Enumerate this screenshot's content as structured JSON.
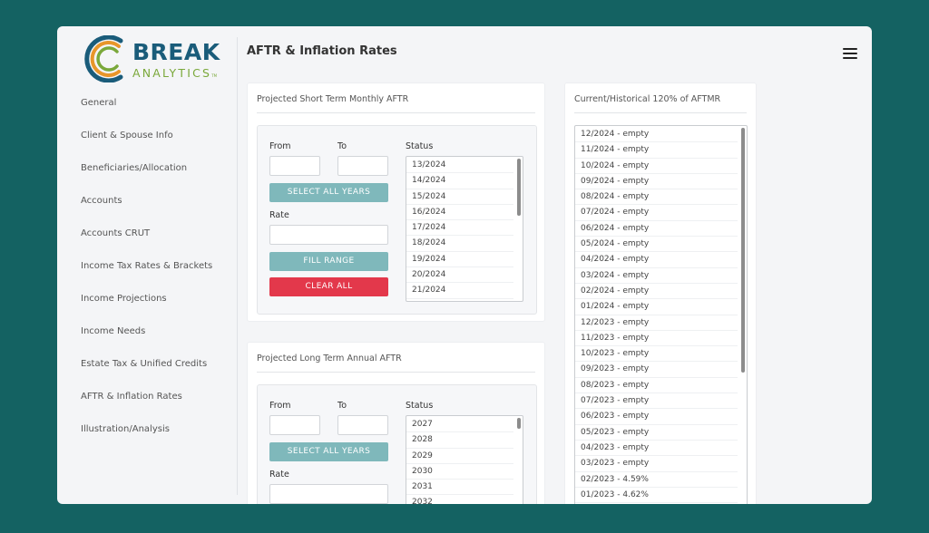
{
  "app": {
    "logo_primary": "BREAK",
    "logo_secondary": "ANALYTICS",
    "logo_tm": "TM"
  },
  "page_title": "AFTR & Inflation Rates",
  "sidebar": {
    "items": [
      {
        "label": "General"
      },
      {
        "label": "Client & Spouse Info"
      },
      {
        "label": "Beneficiaries/Allocation"
      },
      {
        "label": "Accounts"
      },
      {
        "label": "Accounts CRUT"
      },
      {
        "label": "Income Tax Rates & Brackets"
      },
      {
        "label": "Income Projections"
      },
      {
        "label": "Income Needs"
      },
      {
        "label": "Estate Tax & Unified Credits"
      },
      {
        "label": "AFTR & Inflation Rates"
      },
      {
        "label": "Illustration/Analysis"
      }
    ]
  },
  "short_term": {
    "title": "Projected Short Term Monthly AFTR",
    "from_label": "From",
    "to_label": "To",
    "status_label": "Status",
    "from_value": "",
    "to_value": "",
    "select_all_label": "SELECT ALL YEARS",
    "rate_label": "Rate",
    "rate_value": "",
    "fill_range_label": "FILL RANGE",
    "clear_all_label": "CLEAR ALL",
    "status_items": [
      "13/2024",
      "14/2024",
      "15/2024",
      "16/2024",
      "17/2024",
      "18/2024",
      "19/2024",
      "20/2024",
      "21/2024"
    ]
  },
  "long_term": {
    "title": "Projected Long Term Annual AFTR",
    "from_label": "From",
    "to_label": "To",
    "status_label": "Status",
    "from_value": "",
    "to_value": "",
    "select_all_label": "SELECT ALL YEARS",
    "rate_label": "Rate",
    "rate_value": "",
    "status_items": [
      "2027",
      "2028",
      "2029",
      "2030",
      "2031",
      "2032"
    ]
  },
  "historical": {
    "title": "Current/Historical 120% of AFTMR",
    "items": [
      "12/2024 - empty",
      "11/2024 - empty",
      "10/2024 - empty",
      "09/2024 - empty",
      "08/2024 - empty",
      "07/2024 - empty",
      "06/2024 - empty",
      "05/2024 - empty",
      "04/2024 - empty",
      "03/2024 - empty",
      "02/2024 - empty",
      "01/2024 - empty",
      "12/2023 - empty",
      "11/2023 - empty",
      "10/2023 - empty",
      "09/2023 - empty",
      "08/2023 - empty",
      "07/2023 - empty",
      "06/2023 - empty",
      "05/2023 - empty",
      "04/2023 - empty",
      "03/2023 - empty",
      "02/2023 - 4.59%",
      "01/2023 - 4.62%"
    ]
  },
  "colors": {
    "background": "#146262",
    "button_teal": "#7fb8bb",
    "button_red": "#e3384b",
    "logo_blue": "#1a5c7a",
    "logo_green": "#7aa83a",
    "logo_orange": "#e8962a"
  },
  "icons": {
    "menu": "hamburger-menu-icon",
    "logo": "break-analytics-logo-icon"
  }
}
